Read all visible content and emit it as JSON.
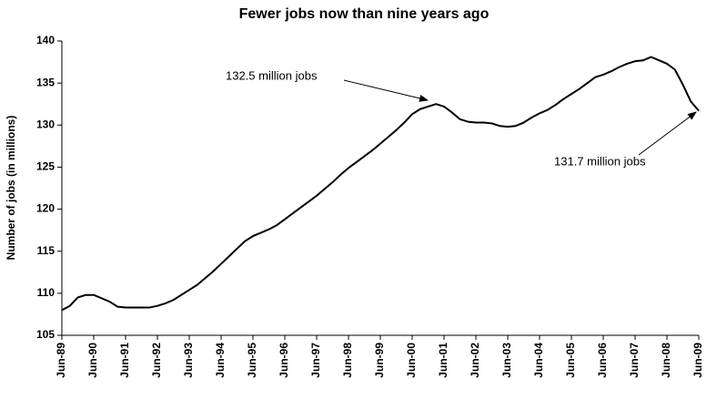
{
  "chart_data": {
    "type": "line",
    "title": "Fewer jobs now than nine years ago",
    "y_label": "Number of jobs (in millions)",
    "categories": [
      "Jun-89",
      null,
      null,
      null,
      "Jun-90",
      null,
      null,
      null,
      "Jun-91",
      null,
      null,
      null,
      "Jun-92",
      null,
      null,
      null,
      "Jun-93",
      null,
      null,
      null,
      "Jun-94",
      null,
      null,
      null,
      "Jun-95",
      null,
      null,
      null,
      "Jun-96",
      null,
      null,
      null,
      "Jun-97",
      null,
      null,
      null,
      "Jun-98",
      null,
      null,
      null,
      "Jun-99",
      null,
      null,
      null,
      "Jun-00",
      null,
      null,
      null,
      "Jun-01",
      null,
      null,
      null,
      "Jun-02",
      null,
      null,
      null,
      "Jun-03",
      null,
      null,
      null,
      "Jun-04",
      null,
      null,
      null,
      "Jun-05",
      null,
      null,
      null,
      "Jun-06",
      null,
      null,
      null,
      "Jun-07",
      null,
      null,
      null,
      "Jun-08",
      null,
      null,
      null,
      "Jun-09"
    ],
    "values": [
      108.0,
      108.5,
      109.5,
      109.8,
      109.8,
      109.4,
      109.0,
      108.4,
      108.3,
      108.3,
      108.3,
      108.3,
      108.5,
      108.8,
      109.2,
      109.8,
      110.4,
      111.0,
      111.8,
      112.6,
      113.5,
      114.4,
      115.3,
      116.2,
      116.8,
      117.2,
      117.6,
      118.1,
      118.8,
      119.5,
      120.2,
      120.9,
      121.6,
      122.4,
      123.2,
      124.1,
      124.9,
      125.6,
      126.3,
      127.0,
      127.8,
      128.6,
      129.4,
      130.3,
      131.3,
      131.9,
      132.2,
      132.5,
      132.2,
      131.5,
      130.7,
      130.4,
      130.3,
      130.3,
      130.2,
      129.9,
      129.8,
      129.9,
      130.3,
      130.9,
      131.4,
      131.8,
      132.4,
      133.1,
      133.7,
      134.3,
      135.0,
      135.7,
      136.0,
      136.4,
      136.9,
      137.3,
      137.6,
      137.7,
      138.1,
      137.7,
      137.3,
      136.6,
      134.8,
      132.8,
      131.7
    ],
    "color": "#000000",
    "ylim": [
      105,
      140
    ],
    "yticks": [
      105,
      110,
      115,
      120,
      125,
      130,
      135,
      140
    ],
    "grid": false,
    "annotations": [
      "132.5 million jobs",
      "131.7 million jobs"
    ]
  }
}
